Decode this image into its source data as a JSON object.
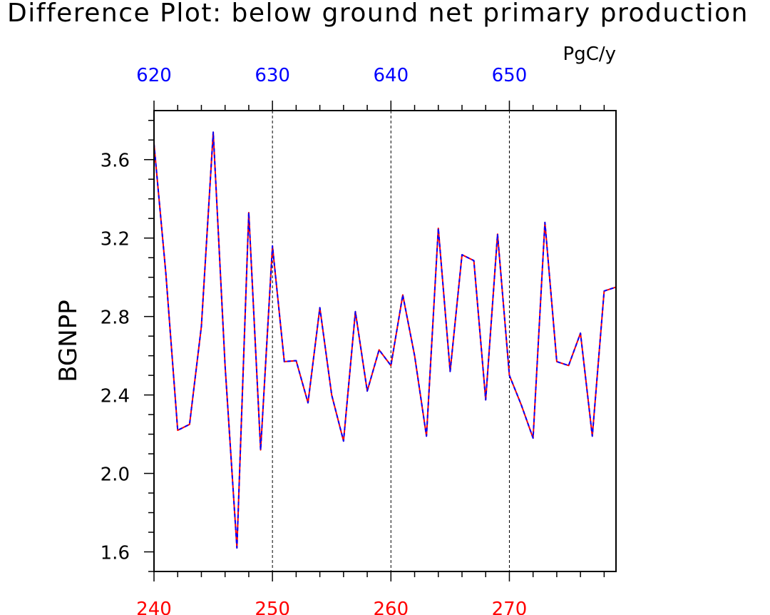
{
  "chart_data": {
    "type": "line",
    "title": "Difference Plot: below ground net primary production",
    "units": "PgC/y",
    "ylabel": "BGNPP",
    "ylim": [
      1.5,
      3.85
    ],
    "yticks": [
      1.6,
      2.0,
      2.4,
      2.8,
      3.2,
      3.6
    ],
    "ytick_labels": [
      "1.6",
      "2.0",
      "2.4",
      "2.8",
      "3.2",
      "3.6"
    ],
    "xlim_bottom": [
      240,
      279
    ],
    "xticks_bottom": [
      240,
      250,
      260,
      270
    ],
    "xtick_labels_bottom": [
      "240",
      "250",
      "260",
      "270"
    ],
    "xlim_top": [
      620,
      659
    ],
    "xticks_top": [
      620,
      630,
      640,
      650
    ],
    "xtick_labels_top": [
      "620",
      "630",
      "640",
      "650"
    ],
    "vertical_gridlines_bottom": [
      250,
      260,
      270
    ],
    "colors": {
      "bottom_axis": "#ff0000",
      "top_axis": "#0000ff",
      "series_a": "#ff0000",
      "series_b": "#0000ff"
    },
    "x": [
      240,
      241,
      242,
      243,
      244,
      245,
      246,
      247,
      248,
      249,
      250,
      251,
      252,
      253,
      254,
      255,
      256,
      257,
      258,
      259,
      260,
      261,
      262,
      263,
      264,
      265,
      266,
      267,
      268,
      269,
      270,
      271,
      272,
      273,
      274,
      275,
      276,
      277,
      278,
      279
    ],
    "series": [
      {
        "color": "#ff0000",
        "values": [
          3.68,
          3.02,
          2.22,
          2.25,
          2.75,
          3.74,
          2.55,
          1.62,
          3.33,
          2.12,
          3.16,
          2.57,
          2.575,
          2.36,
          2.845,
          2.4,
          2.165,
          2.825,
          2.42,
          2.63,
          2.55,
          2.91,
          2.6,
          2.19,
          3.25,
          2.52,
          3.115,
          3.085,
          2.375,
          3.22,
          2.5,
          2.35,
          2.18,
          3.28,
          2.57,
          2.55,
          2.715,
          2.19,
          2.93,
          2.95
        ]
      },
      {
        "color": "#0000ff",
        "values": [
          3.68,
          3.02,
          2.22,
          2.25,
          2.75,
          3.74,
          2.55,
          1.62,
          3.33,
          2.12,
          3.16,
          2.57,
          2.575,
          2.36,
          2.845,
          2.4,
          2.165,
          2.825,
          2.42,
          2.63,
          2.55,
          2.91,
          2.6,
          2.19,
          3.25,
          2.52,
          3.115,
          3.085,
          2.375,
          3.22,
          2.5,
          2.35,
          2.18,
          3.28,
          2.57,
          2.55,
          2.715,
          2.19,
          2.93,
          2.95
        ]
      }
    ]
  }
}
